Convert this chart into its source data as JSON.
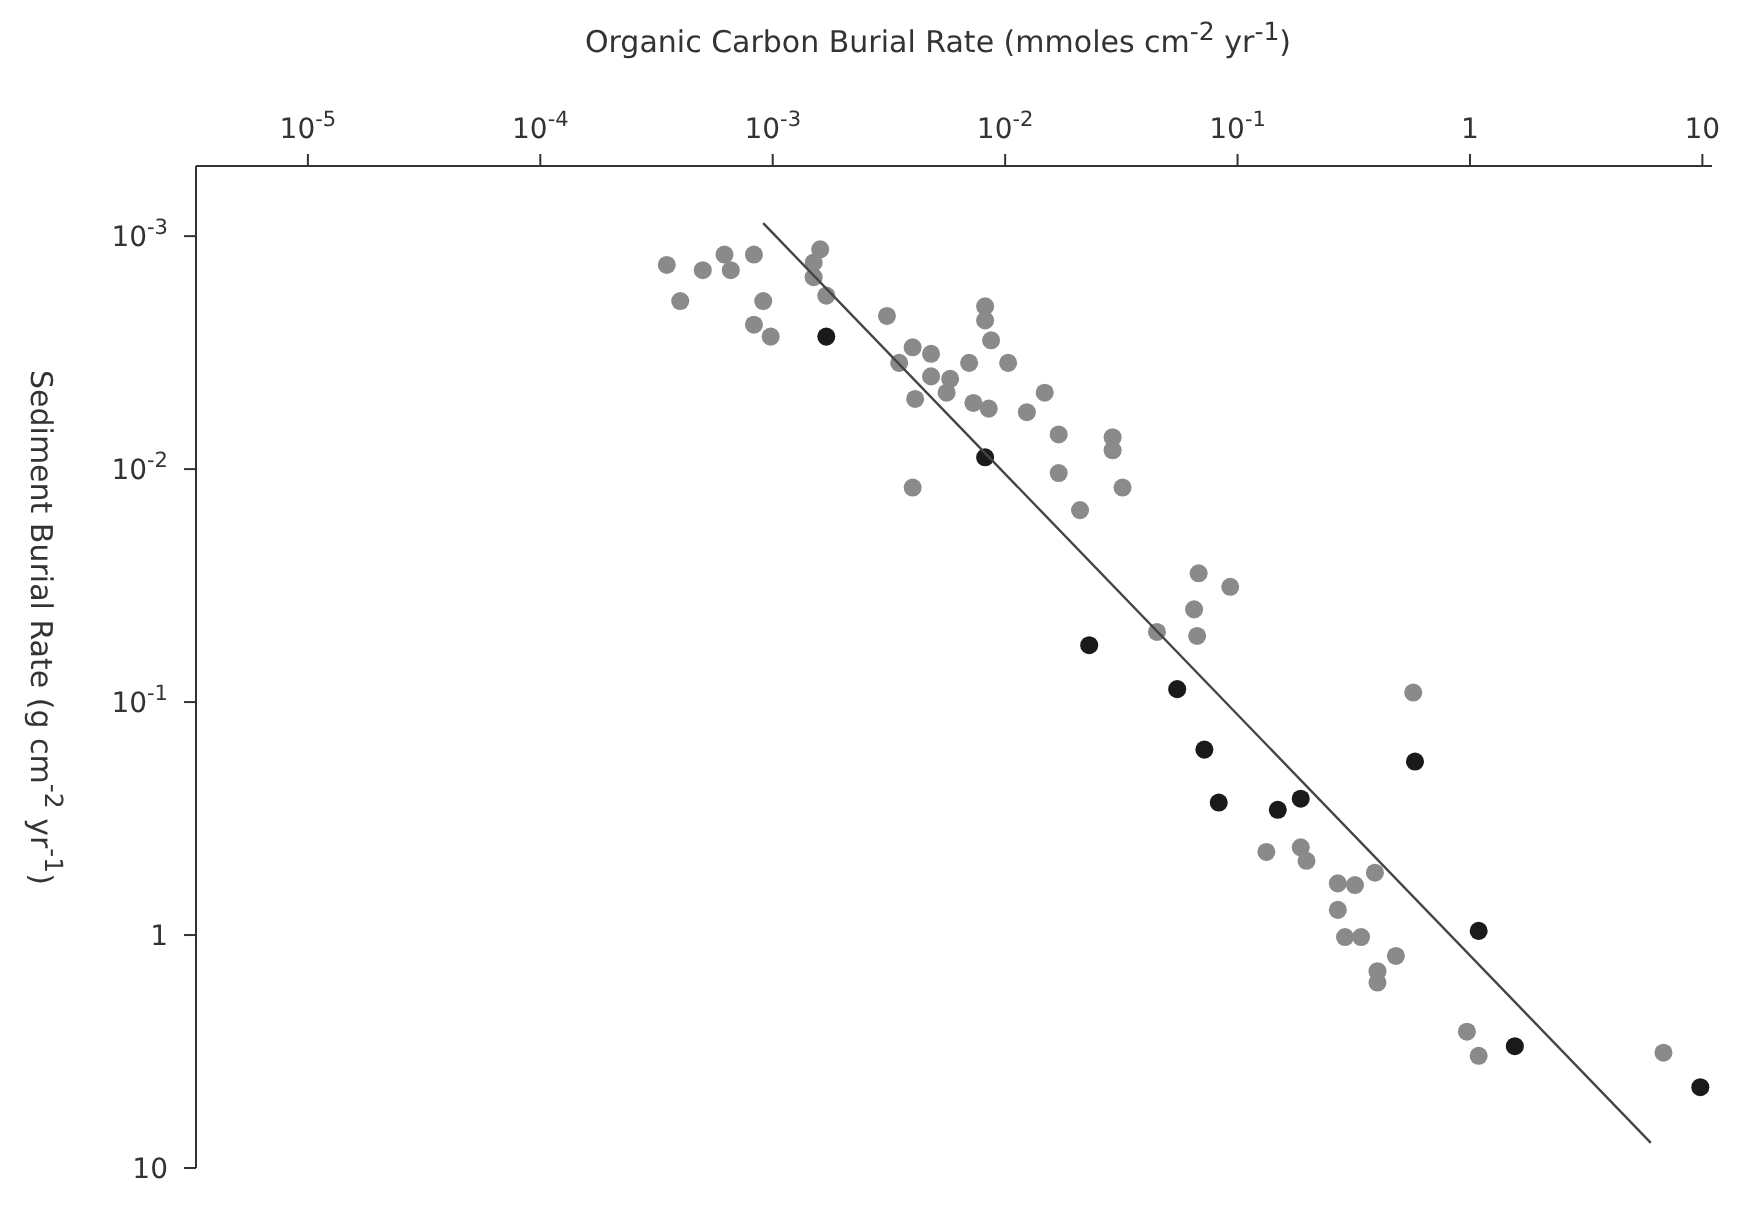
{
  "chart_data": {
    "type": "scatter",
    "xlabel": "Organic Carbon Burial Rate (mmoles cm$^{-2}$ yr$^{-1}$)",
    "ylabel": "Sediment Burial Rate (g cm$^{-2}$ yr$^{-1}$)",
    "log": "xy",
    "grid": false,
    "legend": false,
    "marker": "circle",
    "xlim": [
      3.3e-06,
      11
    ],
    "ylim": [
      10,
      0.0005
    ],
    "xticks": [
      {
        "value": 1e-05,
        "label": "10$^{-5}$"
      },
      {
        "value": 0.0001,
        "label": "10$^{-4}$"
      },
      {
        "value": 0.001,
        "label": "10$^{-3}$"
      },
      {
        "value": 0.01,
        "label": "10$^{-2}$"
      },
      {
        "value": 0.1,
        "label": "10$^{-1}$"
      },
      1,
      10
    ],
    "yticks": [
      {
        "value": 0.001,
        "label": "10$^{-3}$"
      },
      {
        "value": 0.01,
        "label": "10$^{-2}$"
      },
      {
        "value": 0.1,
        "label": "10$^{-1}$"
      },
      1,
      10
    ],
    "series": [
      {
        "color": "#8a8a8a",
        "x": [
          0.00035,
          0.0004,
          0.0005,
          0.00062,
          0.00066,
          0.00083,
          0.00091,
          0.00083,
          0.00098,
          0.0016,
          0.0015,
          0.0015,
          0.0017,
          0.0031,
          0.004,
          0.0035,
          0.0048,
          0.0082,
          0.0082,
          0.0087,
          0.007,
          0.0103,
          0.0048,
          0.0058,
          0.0056,
          0.0041,
          0.0073,
          0.0085,
          0.0124,
          0.0148,
          0.017,
          0.029,
          0.029,
          0.017,
          0.032,
          0.004,
          0.021,
          0.068,
          0.093,
          0.065,
          0.045,
          0.067,
          0.57,
          0.133,
          0.187,
          0.198,
          0.27,
          0.32,
          0.39,
          0.27,
          0.29,
          0.34,
          0.48,
          0.4,
          0.4,
          0.97,
          1.09,
          6.8
        ],
        "values": [
          0.00133,
          0.0019,
          0.0014,
          0.0012,
          0.0014,
          0.0012,
          0.0019,
          0.0024,
          0.0027,
          0.00114,
          0.0013,
          0.0015,
          0.0018,
          0.0022,
          0.003,
          0.0035,
          0.0032,
          0.002,
          0.0023,
          0.0028,
          0.0035,
          0.0035,
          0.004,
          0.0041,
          0.0047,
          0.005,
          0.0052,
          0.0055,
          0.0057,
          0.0047,
          0.0071,
          0.0073,
          0.0083,
          0.0104,
          0.012,
          0.012,
          0.015,
          0.028,
          0.032,
          0.04,
          0.05,
          0.052,
          0.091,
          0.44,
          0.42,
          0.48,
          0.6,
          0.61,
          0.54,
          0.78,
          1.02,
          1.02,
          1.23,
          1.43,
          1.6,
          2.6,
          3.3,
          3.2
        ]
      },
      {
        "color": "#1a1a1a",
        "x": [
          0.0017,
          0.0082,
          0.023,
          0.055,
          0.072,
          0.083,
          0.149,
          0.187,
          0.58,
          1.09,
          1.56,
          9.8
        ],
        "values": [
          0.0027,
          0.0089,
          0.057,
          0.088,
          0.16,
          0.27,
          0.29,
          0.26,
          0.18,
          0.96,
          3.0,
          4.5
        ]
      },
      {
        "type": "line",
        "color": "#444444",
        "marker": "none",
        "x": [
          0.00091,
          6.0
        ],
        "values": [
          0.00088,
          7.8
        ]
      }
    ]
  }
}
